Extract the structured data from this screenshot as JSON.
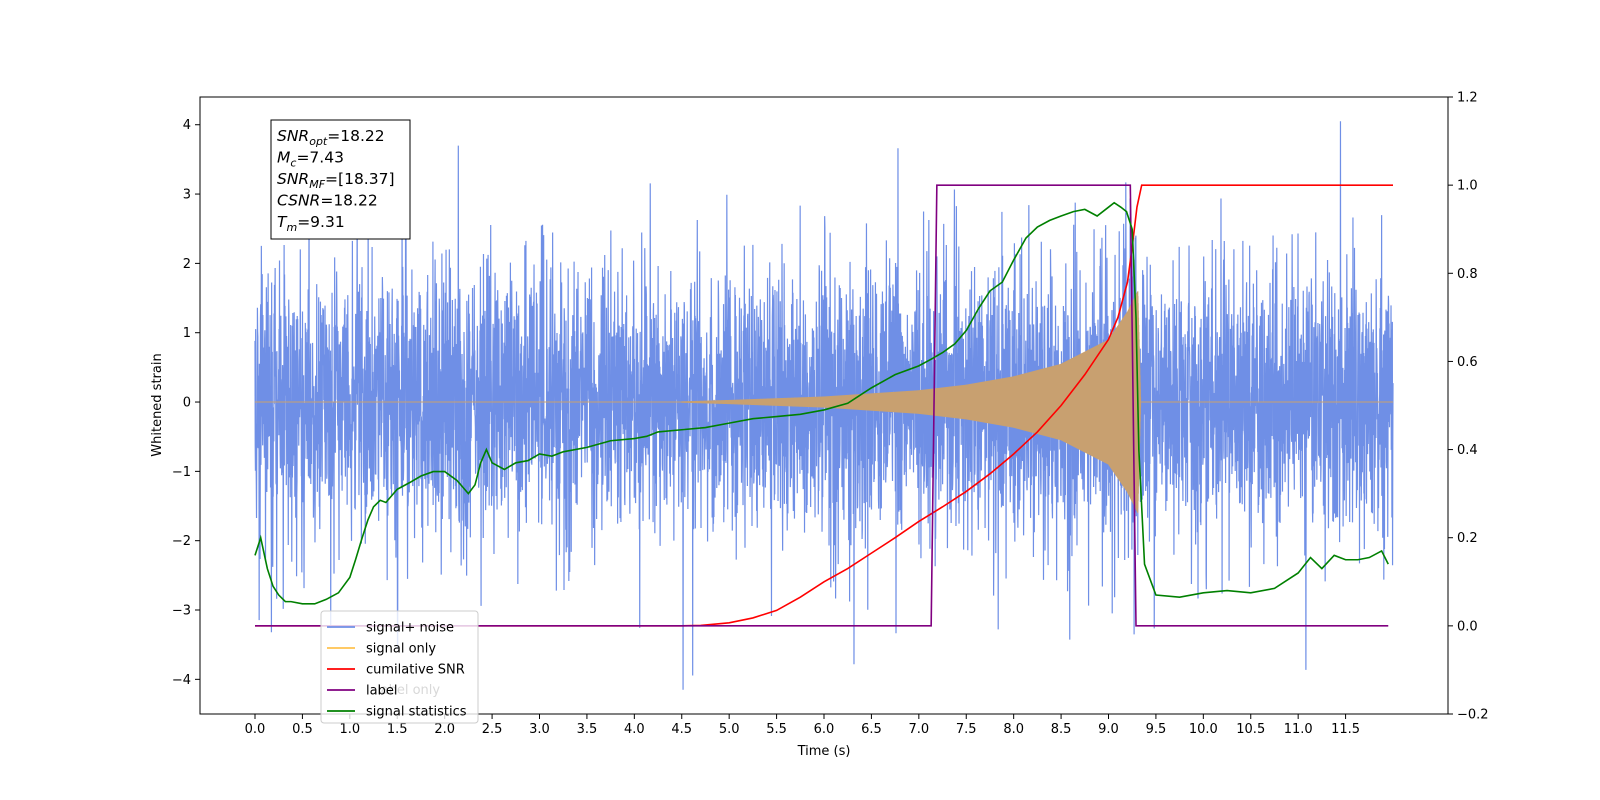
{
  "chart_data": {
    "type": "line",
    "xlabel": "Time (s)",
    "ylabel": "Whitened strain",
    "xlim": [
      -0.58,
      12.58
    ],
    "ylim": [
      -4.5,
      4.4
    ],
    "y2lim": [
      -0.2,
      1.2
    ],
    "x_ticks": [
      "0.0",
      "0.5",
      "1.0",
      "1.5",
      "2.0",
      "2.5",
      "3.0",
      "3.5",
      "4.0",
      "4.5",
      "5.0",
      "5.5",
      "6.0",
      "6.5",
      "7.0",
      "7.5",
      "8.0",
      "8.5",
      "9.0",
      "9.5",
      "10.0",
      "10.5",
      "11.0",
      "11.5"
    ],
    "y_ticks": [
      "-4",
      "-3",
      "-2",
      "-1",
      "0",
      "1",
      "2",
      "3",
      "4"
    ],
    "y2_ticks": [
      "-0.2",
      "0.0",
      "0.2",
      "0.4",
      "0.6",
      "0.8",
      "1.0",
      "1.2"
    ],
    "annotation": {
      "lines": [
        {
          "base": "SNR",
          "sub": "opt",
          "rest": "=18.22"
        },
        {
          "base": "M",
          "sub": "c",
          "rest": "=7.43"
        },
        {
          "base": "SNR",
          "sub": "MF",
          "rest": "=[18.37]"
        },
        {
          "base": "CSNR",
          "sub": "",
          "rest": "=18.22"
        },
        {
          "base": "T",
          "sub": "m",
          "rest": "=9.31"
        }
      ]
    },
    "legend": {
      "placement": "lower-left",
      "entries": [
        {
          "label": "signal+ noise",
          "color": "#6f8fe6"
        },
        {
          "label": "signal only",
          "color": "#ffc24f"
        },
        {
          "label": "cumilative SNR",
          "color": "#ff0000"
        },
        {
          "label": "label",
          "color": "#800080"
        },
        {
          "label": "signal statistics",
          "color": "#008000"
        }
      ],
      "occluded_text": "label only"
    },
    "series": [
      {
        "name": "signal+ noise",
        "axis": "left",
        "color": "#6f8fe6",
        "description": "whitened noise plus chirp",
        "x_range": [
          0.0,
          12.0
        ],
        "noise_std": 1.0
      },
      {
        "name": "signal only",
        "axis": "left",
        "color": "#ffc24f",
        "merger_time": 9.31,
        "peak_amplitude": 1.6,
        "envelope": [
          [
            4.5,
            0.01
          ],
          [
            5.0,
            0.03
          ],
          [
            6.0,
            0.08
          ],
          [
            7.0,
            0.17
          ],
          [
            7.5,
            0.25
          ],
          [
            8.0,
            0.37
          ],
          [
            8.5,
            0.55
          ],
          [
            9.0,
            0.9
          ],
          [
            9.2,
            1.3
          ],
          [
            9.31,
            1.6
          ]
        ]
      },
      {
        "name": "cumilative SNR",
        "axis": "right",
        "color": "#ff0000",
        "x": [
          0.0,
          4.5,
          4.7,
          5.0,
          5.25,
          5.5,
          5.75,
          6.0,
          6.25,
          6.5,
          6.75,
          7.0,
          7.25,
          7.5,
          7.75,
          8.0,
          8.25,
          8.5,
          8.75,
          9.0,
          9.1,
          9.2,
          9.25,
          9.3,
          9.35,
          12.0
        ],
        "y": [
          0.0,
          0.0,
          0.001,
          0.007,
          0.018,
          0.035,
          0.065,
          0.1,
          0.13,
          0.165,
          0.2,
          0.237,
          0.27,
          0.305,
          0.345,
          0.39,
          0.44,
          0.5,
          0.57,
          0.65,
          0.7,
          0.78,
          0.86,
          0.95,
          1.0,
          1.0
        ]
      },
      {
        "name": "label",
        "axis": "right",
        "color": "#800080",
        "x": [
          0.0,
          7.13,
          7.19,
          9.23,
          9.29,
          11.95
        ],
        "y": [
          0.0,
          0.0,
          1.0,
          1.0,
          0.0,
          0.0
        ]
      },
      {
        "name": "signal statistics",
        "axis": "right",
        "color": "#008000",
        "x": [
          0.0,
          0.06,
          0.13,
          0.19,
          0.25,
          0.32,
          0.38,
          0.5,
          0.63,
          0.75,
          0.88,
          1.0,
          1.06,
          1.13,
          1.19,
          1.25,
          1.32,
          1.38,
          1.5,
          1.63,
          1.75,
          1.88,
          2.0,
          2.13,
          2.25,
          2.32,
          2.38,
          2.44,
          2.5,
          2.63,
          2.75,
          2.88,
          3.0,
          3.13,
          3.25,
          3.5,
          3.75,
          4.0,
          4.13,
          4.25,
          4.5,
          4.75,
          5.0,
          5.25,
          5.5,
          5.75,
          6.0,
          6.25,
          6.5,
          6.75,
          7.0,
          7.13,
          7.25,
          7.38,
          7.5,
          7.63,
          7.75,
          7.88,
          8.0,
          8.13,
          8.25,
          8.38,
          8.5,
          8.63,
          8.75,
          8.88,
          9.0,
          9.06,
          9.13,
          9.19,
          9.25,
          9.29,
          9.32,
          9.38,
          9.5,
          9.75,
          10.0,
          10.25,
          10.5,
          10.75,
          11.0,
          11.13,
          11.25,
          11.38,
          11.5,
          11.63,
          11.75,
          11.88,
          11.95
        ],
        "y": [
          0.16,
          0.2,
          0.13,
          0.09,
          0.07,
          0.055,
          0.055,
          0.05,
          0.05,
          0.06,
          0.075,
          0.11,
          0.15,
          0.2,
          0.24,
          0.27,
          0.285,
          0.28,
          0.31,
          0.325,
          0.34,
          0.35,
          0.35,
          0.33,
          0.3,
          0.32,
          0.37,
          0.4,
          0.37,
          0.355,
          0.37,
          0.375,
          0.39,
          0.385,
          0.395,
          0.405,
          0.42,
          0.425,
          0.43,
          0.44,
          0.445,
          0.45,
          0.46,
          0.47,
          0.475,
          0.48,
          0.49,
          0.505,
          0.54,
          0.57,
          0.59,
          0.605,
          0.62,
          0.64,
          0.67,
          0.72,
          0.76,
          0.78,
          0.83,
          0.88,
          0.905,
          0.92,
          0.93,
          0.94,
          0.945,
          0.93,
          0.95,
          0.96,
          0.95,
          0.94,
          0.9,
          0.7,
          0.4,
          0.14,
          0.07,
          0.065,
          0.075,
          0.08,
          0.075,
          0.085,
          0.12,
          0.155,
          0.13,
          0.16,
          0.15,
          0.15,
          0.155,
          0.17,
          0.14
        ]
      }
    ]
  }
}
